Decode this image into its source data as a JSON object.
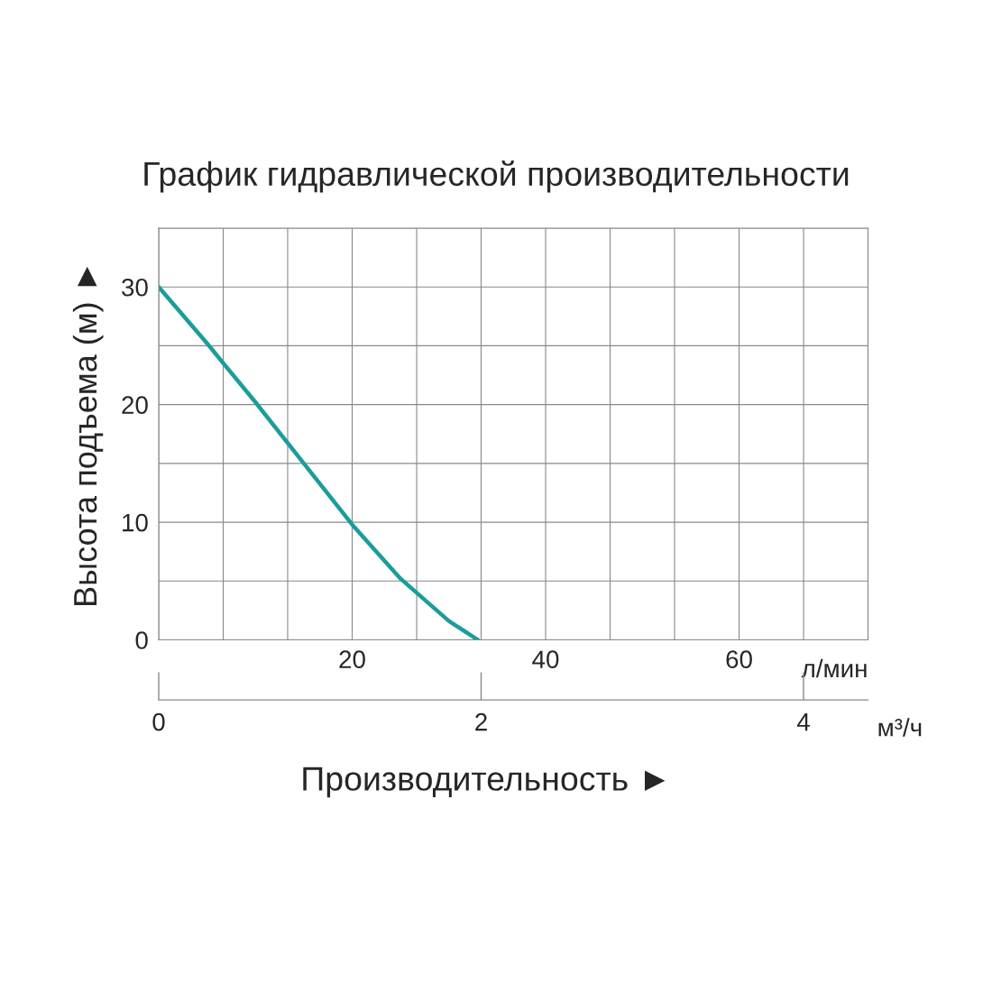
{
  "chart_data": {
    "type": "line",
    "title": "График гидравлической производительности",
    "xlabel": "Производительность ►",
    "ylabel": "Высота подъема (м) ►",
    "x2label": "м³/ч",
    "annotations": [
      "л/мин"
    ],
    "series": [
      {
        "color": "#1c9c9c",
        "x": [
          0,
          5,
          10,
          15,
          20,
          25,
          30,
          33
        ],
        "values": [
          30,
          25.2,
          20.2,
          15.0,
          9.8,
          5.2,
          1.6,
          0
        ]
      }
    ],
    "xlim": [
      0,
      73.33
    ],
    "xticks": [
      {
        "value": 0,
        "label": null
      },
      {
        "value": 6.67,
        "label": null
      },
      {
        "value": 13.33,
        "label": null
      },
      20,
      {
        "value": 26.67,
        "label": null
      },
      {
        "value": 33.33,
        "label": null
      },
      40,
      {
        "value": 46.67,
        "label": null
      },
      {
        "value": 53.33,
        "label": null
      },
      60,
      {
        "value": 66.67,
        "label": null
      },
      {
        "value": 73.33,
        "label": null
      }
    ],
    "ylim": [
      0,
      35
    ],
    "yticks": [
      0,
      {
        "value": 5,
        "label": null
      },
      10,
      {
        "value": 15,
        "label": null
      },
      20,
      {
        "value": 25,
        "label": null
      },
      30,
      {
        "value": 35,
        "label": null
      }
    ],
    "x2lim": [
      0,
      4.4
    ],
    "x2ticks": [
      0,
      2,
      4
    ],
    "grid": true,
    "line_style": "solid",
    "marker": "none"
  }
}
